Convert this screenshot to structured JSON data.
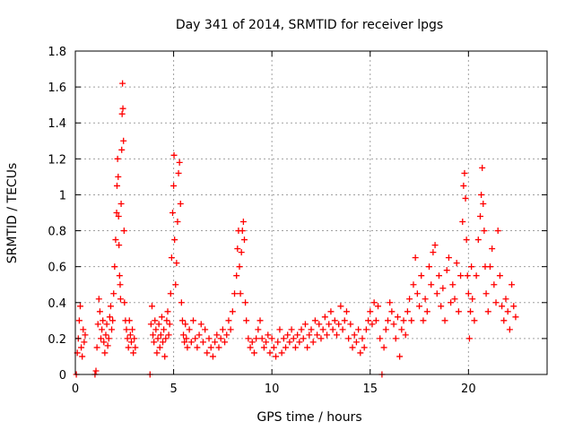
{
  "chart_data": {
    "type": "scatter",
    "title": "Day 341 of 2014, SRMTID for receiver lpgs",
    "xlabel": "GPS time / hours",
    "ylabel": "SRMTID / TECUs",
    "xlim": [
      0,
      24
    ],
    "ylim": [
      0,
      1.8
    ],
    "xticks": [
      0,
      5,
      10,
      15,
      20
    ],
    "xtick_labels": [
      "0",
      "5",
      "10",
      "15",
      "20"
    ],
    "yticks": [
      0,
      0.2,
      0.4,
      0.6,
      0.8,
      1,
      1.2,
      1.4,
      1.6,
      1.8
    ],
    "ytick_labels": [
      "0",
      "0.2",
      "0.4",
      "0.6",
      "0.8",
      "1",
      "1.2",
      "1.4",
      "1.6",
      "1.8"
    ],
    "grid": true,
    "marker": "plus",
    "marker_color": "#ff0000",
    "series": [
      {
        "name": "SRMTID",
        "points": [
          [
            0.05,
            0.0
          ],
          [
            0.1,
            0.12
          ],
          [
            0.15,
            0.2
          ],
          [
            0.2,
            0.3
          ],
          [
            0.25,
            0.38
          ],
          [
            0.3,
            0.15
          ],
          [
            0.35,
            0.1
          ],
          [
            0.4,
            0.25
          ],
          [
            0.45,
            0.18
          ],
          [
            0.5,
            0.22
          ],
          [
            1.0,
            0.0
          ],
          [
            1.05,
            0.02
          ],
          [
            1.1,
            0.15
          ],
          [
            1.15,
            0.28
          ],
          [
            1.2,
            0.42
          ],
          [
            1.25,
            0.35
          ],
          [
            1.3,
            0.2
          ],
          [
            1.35,
            0.25
          ],
          [
            1.4,
            0.3
          ],
          [
            1.45,
            0.18
          ],
          [
            1.5,
            0.12
          ],
          [
            1.55,
            0.22
          ],
          [
            1.6,
            0.28
          ],
          [
            1.65,
            0.16
          ],
          [
            1.7,
            0.2
          ],
          [
            1.75,
            0.32
          ],
          [
            1.8,
            0.38
          ],
          [
            1.85,
            0.25
          ],
          [
            1.9,
            0.3
          ],
          [
            1.95,
            0.45
          ],
          [
            2.0,
            0.6
          ],
          [
            2.05,
            0.75
          ],
          [
            2.1,
            0.9
          ],
          [
            2.12,
            1.05
          ],
          [
            2.15,
            1.2
          ],
          [
            2.18,
            1.1
          ],
          [
            2.2,
            0.88
          ],
          [
            2.22,
            0.72
          ],
          [
            2.25,
            0.55
          ],
          [
            2.28,
            0.5
          ],
          [
            2.3,
            0.42
          ],
          [
            2.33,
            0.95
          ],
          [
            2.36,
            1.25
          ],
          [
            2.38,
            1.45
          ],
          [
            2.4,
            1.62
          ],
          [
            2.42,
            1.48
          ],
          [
            2.45,
            1.3
          ],
          [
            2.48,
            0.8
          ],
          [
            2.5,
            0.4
          ],
          [
            2.55,
            0.3
          ],
          [
            2.6,
            0.25
          ],
          [
            2.65,
            0.2
          ],
          [
            2.7,
            0.15
          ],
          [
            2.75,
            0.3
          ],
          [
            2.8,
            0.22
          ],
          [
            2.85,
            0.18
          ],
          [
            2.9,
            0.25
          ],
          [
            2.95,
            0.12
          ],
          [
            3.0,
            0.2
          ],
          [
            3.05,
            0.15
          ],
          [
            3.8,
            0.0
          ],
          [
            3.85,
            0.28
          ],
          [
            3.9,
            0.38
          ],
          [
            3.95,
            0.22
          ],
          [
            4.0,
            0.18
          ],
          [
            4.05,
            0.3
          ],
          [
            4.1,
            0.25
          ],
          [
            4.15,
            0.12
          ],
          [
            4.2,
            0.2
          ],
          [
            4.25,
            0.28
          ],
          [
            4.3,
            0.15
          ],
          [
            4.35,
            0.22
          ],
          [
            4.4,
            0.32
          ],
          [
            4.45,
            0.18
          ],
          [
            4.5,
            0.25
          ],
          [
            4.55,
            0.1
          ],
          [
            4.6,
            0.2
          ],
          [
            4.65,
            0.3
          ],
          [
            4.7,
            0.35
          ],
          [
            4.75,
            0.22
          ],
          [
            4.8,
            0.28
          ],
          [
            4.85,
            0.45
          ],
          [
            4.9,
            0.65
          ],
          [
            4.95,
            0.9
          ],
          [
            5.0,
            1.05
          ],
          [
            5.02,
            1.22
          ],
          [
            5.05,
            0.75
          ],
          [
            5.1,
            0.5
          ],
          [
            5.15,
            0.62
          ],
          [
            5.2,
            0.85
          ],
          [
            5.25,
            1.12
          ],
          [
            5.3,
            1.18
          ],
          [
            5.35,
            0.95
          ],
          [
            5.4,
            0.4
          ],
          [
            5.45,
            0.3
          ],
          [
            5.5,
            0.22
          ],
          [
            5.55,
            0.18
          ],
          [
            5.6,
            0.28
          ],
          [
            5.65,
            0.2
          ],
          [
            5.7,
            0.15
          ],
          [
            5.8,
            0.25
          ],
          [
            5.9,
            0.18
          ],
          [
            6.0,
            0.3
          ],
          [
            6.1,
            0.2
          ],
          [
            6.2,
            0.15
          ],
          [
            6.3,
            0.22
          ],
          [
            6.4,
            0.28
          ],
          [
            6.5,
            0.18
          ],
          [
            6.6,
            0.25
          ],
          [
            6.7,
            0.12
          ],
          [
            6.8,
            0.2
          ],
          [
            6.9,
            0.15
          ],
          [
            7.0,
            0.1
          ],
          [
            7.1,
            0.18
          ],
          [
            7.2,
            0.22
          ],
          [
            7.3,
            0.15
          ],
          [
            7.4,
            0.2
          ],
          [
            7.5,
            0.25
          ],
          [
            7.6,
            0.18
          ],
          [
            7.7,
            0.22
          ],
          [
            7.8,
            0.3
          ],
          [
            7.9,
            0.25
          ],
          [
            8.0,
            0.35
          ],
          [
            8.1,
            0.45
          ],
          [
            8.2,
            0.55
          ],
          [
            8.25,
            0.7
          ],
          [
            8.3,
            0.8
          ],
          [
            8.35,
            0.6
          ],
          [
            8.4,
            0.45
          ],
          [
            8.45,
            0.68
          ],
          [
            8.5,
            0.8
          ],
          [
            8.55,
            0.85
          ],
          [
            8.6,
            0.75
          ],
          [
            8.65,
            0.4
          ],
          [
            8.7,
            0.3
          ],
          [
            8.8,
            0.2
          ],
          [
            8.9,
            0.15
          ],
          [
            9.0,
            0.18
          ],
          [
            9.1,
            0.12
          ],
          [
            9.2,
            0.2
          ],
          [
            9.3,
            0.25
          ],
          [
            9.4,
            0.3
          ],
          [
            9.5,
            0.2
          ],
          [
            9.6,
            0.15
          ],
          [
            9.7,
            0.18
          ],
          [
            9.8,
            0.22
          ],
          [
            9.9,
            0.12
          ],
          [
            10.0,
            0.2
          ],
          [
            10.1,
            0.15
          ],
          [
            10.2,
            0.1
          ],
          [
            10.3,
            0.18
          ],
          [
            10.4,
            0.25
          ],
          [
            10.5,
            0.12
          ],
          [
            10.6,
            0.2
          ],
          [
            10.7,
            0.15
          ],
          [
            10.8,
            0.22
          ],
          [
            10.9,
            0.18
          ],
          [
            11.0,
            0.25
          ],
          [
            11.1,
            0.2
          ],
          [
            11.2,
            0.15
          ],
          [
            11.3,
            0.22
          ],
          [
            11.4,
            0.18
          ],
          [
            11.5,
            0.25
          ],
          [
            11.6,
            0.2
          ],
          [
            11.7,
            0.28
          ],
          [
            11.8,
            0.15
          ],
          [
            11.9,
            0.22
          ],
          [
            12.0,
            0.25
          ],
          [
            12.1,
            0.18
          ],
          [
            12.2,
            0.3
          ],
          [
            12.3,
            0.22
          ],
          [
            12.4,
            0.28
          ],
          [
            12.5,
            0.2
          ],
          [
            12.6,
            0.25
          ],
          [
            12.7,
            0.32
          ],
          [
            12.8,
            0.22
          ],
          [
            12.9,
            0.28
          ],
          [
            13.0,
            0.35
          ],
          [
            13.1,
            0.25
          ],
          [
            13.2,
            0.3
          ],
          [
            13.3,
            0.22
          ],
          [
            13.4,
            0.28
          ],
          [
            13.5,
            0.38
          ],
          [
            13.6,
            0.25
          ],
          [
            13.7,
            0.3
          ],
          [
            13.8,
            0.35
          ],
          [
            13.9,
            0.2
          ],
          [
            14.0,
            0.28
          ],
          [
            14.1,
            0.15
          ],
          [
            14.2,
            0.22
          ],
          [
            14.3,
            0.18
          ],
          [
            14.4,
            0.25
          ],
          [
            14.5,
            0.12
          ],
          [
            14.6,
            0.2
          ],
          [
            14.7,
            0.15
          ],
          [
            14.8,
            0.25
          ],
          [
            14.9,
            0.3
          ],
          [
            15.0,
            0.35
          ],
          [
            15.1,
            0.28
          ],
          [
            15.2,
            0.4
          ],
          [
            15.3,
            0.3
          ],
          [
            15.4,
            0.38
          ],
          [
            15.5,
            0.2
          ],
          [
            15.6,
            0.0
          ],
          [
            15.7,
            0.15
          ],
          [
            15.8,
            0.25
          ],
          [
            15.9,
            0.3
          ],
          [
            16.0,
            0.4
          ],
          [
            16.1,
            0.35
          ],
          [
            16.2,
            0.28
          ],
          [
            16.3,
            0.2
          ],
          [
            16.4,
            0.32
          ],
          [
            16.5,
            0.1
          ],
          [
            16.6,
            0.25
          ],
          [
            16.7,
            0.3
          ],
          [
            16.8,
            0.22
          ],
          [
            16.9,
            0.35
          ],
          [
            17.0,
            0.42
          ],
          [
            17.1,
            0.3
          ],
          [
            17.2,
            0.5
          ],
          [
            17.3,
            0.65
          ],
          [
            17.4,
            0.45
          ],
          [
            17.5,
            0.38
          ],
          [
            17.6,
            0.55
          ],
          [
            17.7,
            0.3
          ],
          [
            17.8,
            0.42
          ],
          [
            17.9,
            0.35
          ],
          [
            18.0,
            0.6
          ],
          [
            18.1,
            0.5
          ],
          [
            18.2,
            0.68
          ],
          [
            18.3,
            0.72
          ],
          [
            18.4,
            0.45
          ],
          [
            18.5,
            0.55
          ],
          [
            18.6,
            0.38
          ],
          [
            18.7,
            0.48
          ],
          [
            18.8,
            0.3
          ],
          [
            18.9,
            0.58
          ],
          [
            19.0,
            0.65
          ],
          [
            19.1,
            0.4
          ],
          [
            19.2,
            0.5
          ],
          [
            19.3,
            0.42
          ],
          [
            19.4,
            0.62
          ],
          [
            19.5,
            0.35
          ],
          [
            19.6,
            0.55
          ],
          [
            19.7,
            0.85
          ],
          [
            19.75,
            1.05
          ],
          [
            19.8,
            1.12
          ],
          [
            19.85,
            0.98
          ],
          [
            19.9,
            0.75
          ],
          [
            19.95,
            0.55
          ],
          [
            20.0,
            0.45
          ],
          [
            20.05,
            0.2
          ],
          [
            20.1,
            0.35
          ],
          [
            20.15,
            0.6
          ],
          [
            20.2,
            0.42
          ],
          [
            20.3,
            0.3
          ],
          [
            20.4,
            0.55
          ],
          [
            20.5,
            0.75
          ],
          [
            20.6,
            0.88
          ],
          [
            20.65,
            1.0
          ],
          [
            20.7,
            1.15
          ],
          [
            20.75,
            0.95
          ],
          [
            20.8,
            0.8
          ],
          [
            20.85,
            0.6
          ],
          [
            20.9,
            0.45
          ],
          [
            21.0,
            0.35
          ],
          [
            21.1,
            0.6
          ],
          [
            21.2,
            0.7
          ],
          [
            21.3,
            0.5
          ],
          [
            21.4,
            0.4
          ],
          [
            21.5,
            0.8
          ],
          [
            21.6,
            0.55
          ],
          [
            21.7,
            0.38
          ],
          [
            21.8,
            0.3
          ],
          [
            21.9,
            0.42
          ],
          [
            22.0,
            0.35
          ],
          [
            22.1,
            0.25
          ],
          [
            22.2,
            0.5
          ],
          [
            22.3,
            0.38
          ],
          [
            22.4,
            0.32
          ]
        ]
      }
    ]
  }
}
